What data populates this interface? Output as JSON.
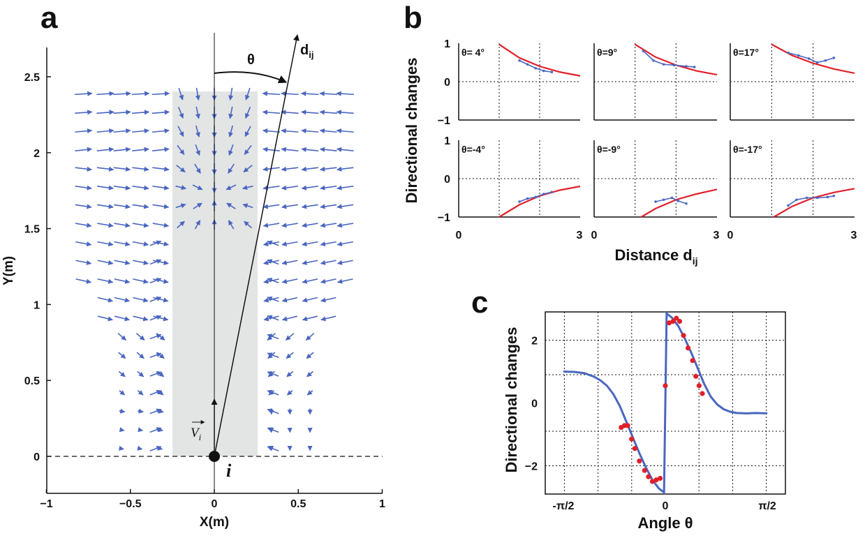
{
  "colors": {
    "arrow": "#4a66c0",
    "fit": "#e0202a",
    "points": "#e0202a",
    "curve_c": "#4a66c0",
    "shade": "#e3e5e5"
  },
  "chart_data": [
    {
      "panel": "a",
      "type": "quiver",
      "xlabel": "X(m)",
      "ylabel": "Y(m)",
      "xlim": [
        -1,
        1
      ],
      "ylim": [
        -0.25,
        2.75
      ],
      "x_ticks": [
        "−1",
        "−0.5",
        "0",
        "0.5",
        "1"
      ],
      "y_ticks": [
        "0",
        "0.5",
        "1",
        "1.5",
        "2",
        "2.5"
      ],
      "shaded_region_x": [
        -0.25,
        0.25
      ],
      "annotations": {
        "theta": "θ",
        "d_ij": "d",
        "d_sub": "ij",
        "agent": "i",
        "velocity": "V",
        "velocity_sub": "i"
      }
    },
    {
      "panel": "b",
      "type": "line",
      "xlabel": "Distance d",
      "xlabel_sub": "ij",
      "ylabel": "Directional changes",
      "xlim": [
        0,
        3
      ],
      "ylim": [
        -1,
        1
      ],
      "x_ticks": [
        "0",
        "3"
      ],
      "y_ticks": [
        "1",
        "0",
        "−1"
      ],
      "subplots": [
        {
          "label": "θ= 4°",
          "fit": [
            [
              1,
              0.97
            ],
            [
              1.5,
              0.62
            ],
            [
              2,
              0.4
            ],
            [
              2.5,
              0.25
            ],
            [
              3,
              0.15
            ]
          ],
          "data": [
            [
              1.5,
              0.55
            ],
            [
              1.7,
              0.45
            ],
            [
              1.9,
              0.35
            ],
            [
              2.1,
              0.28
            ],
            [
              2.3,
              0.25
            ]
          ]
        },
        {
          "label": "θ=9°",
          "fit": [
            [
              1,
              0.97
            ],
            [
              1.5,
              0.64
            ],
            [
              2,
              0.43
            ],
            [
              2.5,
              0.28
            ],
            [
              3,
              0.18
            ]
          ],
          "data": [
            [
              1.2,
              0.8
            ],
            [
              1.45,
              0.55
            ],
            [
              1.7,
              0.45
            ],
            [
              1.95,
              0.43
            ],
            [
              2.25,
              0.4
            ],
            [
              2.45,
              0.38
            ]
          ]
        },
        {
          "label": "θ=17°",
          "fit": [
            [
              1,
              0.97
            ],
            [
              1.5,
              0.68
            ],
            [
              2,
              0.48
            ],
            [
              2.5,
              0.33
            ],
            [
              3,
              0.22
            ]
          ],
          "data": [
            [
              1.4,
              0.75
            ],
            [
              1.65,
              0.68
            ],
            [
              1.9,
              0.6
            ],
            [
              2.1,
              0.5
            ],
            [
              2.3,
              0.55
            ],
            [
              2.5,
              0.62
            ]
          ]
        },
        {
          "label": "θ=-4°",
          "fit": [
            [
              1,
              -1.0
            ],
            [
              1.5,
              -0.68
            ],
            [
              2,
              -0.45
            ],
            [
              2.5,
              -0.3
            ],
            [
              3,
              -0.2
            ]
          ],
          "data": [
            [
              1.5,
              -0.6
            ],
            [
              1.7,
              -0.52
            ],
            [
              1.9,
              -0.48
            ],
            [
              2.1,
              -0.4
            ],
            [
              2.3,
              -0.35
            ]
          ]
        },
        {
          "label": "θ=-9°",
          "fit": [
            [
              1.15,
              -1.0
            ],
            [
              1.5,
              -0.78
            ],
            [
              2,
              -0.55
            ],
            [
              2.5,
              -0.4
            ],
            [
              3,
              -0.28
            ]
          ],
          "data": [
            [
              1.5,
              -0.6
            ],
            [
              1.7,
              -0.55
            ],
            [
              1.9,
              -0.5
            ],
            [
              2.05,
              -0.58
            ],
            [
              2.25,
              -0.65
            ]
          ]
        },
        {
          "label": "θ=-17°",
          "fit": [
            [
              1.05,
              -1.0
            ],
            [
              1.5,
              -0.72
            ],
            [
              2,
              -0.5
            ],
            [
              2.5,
              -0.36
            ],
            [
              3,
              -0.26
            ]
          ],
          "data": [
            [
              1.4,
              -0.7
            ],
            [
              1.6,
              -0.55
            ],
            [
              1.85,
              -0.5
            ],
            [
              2.1,
              -0.5
            ],
            [
              2.35,
              -0.48
            ],
            [
              2.5,
              -0.45
            ]
          ]
        }
      ]
    },
    {
      "panel": "c",
      "type": "line",
      "xlabel": "Angle θ",
      "ylabel": "Directional changes",
      "xlim": [
        -1.85,
        1.85
      ],
      "ylim": [
        -2.9,
        2.9
      ],
      "x_ticks": [
        "-π/2",
        "0",
        "π/2"
      ],
      "y_ticks": [
        "2",
        "0",
        "−2"
      ],
      "curve": [
        [
          -1.571,
          1.0
        ],
        [
          -1.4,
          0.99
        ],
        [
          -1.25,
          0.95
        ],
        [
          -1.1,
          0.84
        ],
        [
          -1.0,
          0.72
        ],
        [
          -0.9,
          0.55
        ],
        [
          -0.8,
          0.28
        ],
        [
          -0.7,
          -0.1
        ],
        [
          -0.6,
          -0.6
        ],
        [
          -0.5,
          -1.1
        ],
        [
          -0.4,
          -1.6
        ],
        [
          -0.3,
          -2.05
        ],
        [
          -0.2,
          -2.45
        ],
        [
          -0.1,
          -2.72
        ],
        [
          -0.02,
          -2.85
        ],
        [
          0.0,
          0.0
        ],
        [
          0.02,
          2.85
        ],
        [
          0.1,
          2.72
        ],
        [
          0.2,
          2.45
        ],
        [
          0.3,
          2.05
        ],
        [
          0.4,
          1.6
        ],
        [
          0.5,
          1.1
        ],
        [
          0.6,
          0.6
        ],
        [
          0.7,
          0.2
        ],
        [
          0.8,
          -0.05
        ],
        [
          0.9,
          -0.2
        ],
        [
          1.0,
          -0.28
        ],
        [
          1.1,
          -0.32
        ],
        [
          1.25,
          -0.33
        ],
        [
          1.4,
          -0.32
        ],
        [
          1.571,
          -0.33
        ]
      ],
      "points": [
        [
          -0.68,
          -0.78
        ],
        [
          -0.63,
          -0.72
        ],
        [
          -0.58,
          -0.72
        ],
        [
          -0.52,
          -1.15
        ],
        [
          -0.47,
          -1.45
        ],
        [
          -0.4,
          -1.85
        ],
        [
          -0.32,
          -2.15
        ],
        [
          -0.26,
          -2.35
        ],
        [
          -0.2,
          -2.5
        ],
        [
          -0.14,
          -2.45
        ],
        [
          -0.08,
          -2.4
        ],
        [
          0.0,
          0.55
        ],
        [
          0.06,
          2.55
        ],
        [
          0.12,
          2.6
        ],
        [
          0.17,
          2.7
        ],
        [
          0.22,
          2.6
        ],
        [
          0.28,
          2.15
        ],
        [
          0.35,
          1.75
        ],
        [
          0.42,
          1.35
        ],
        [
          0.47,
          0.85
        ],
        [
          0.52,
          0.55
        ],
        [
          0.57,
          0.3
        ]
      ]
    }
  ]
}
